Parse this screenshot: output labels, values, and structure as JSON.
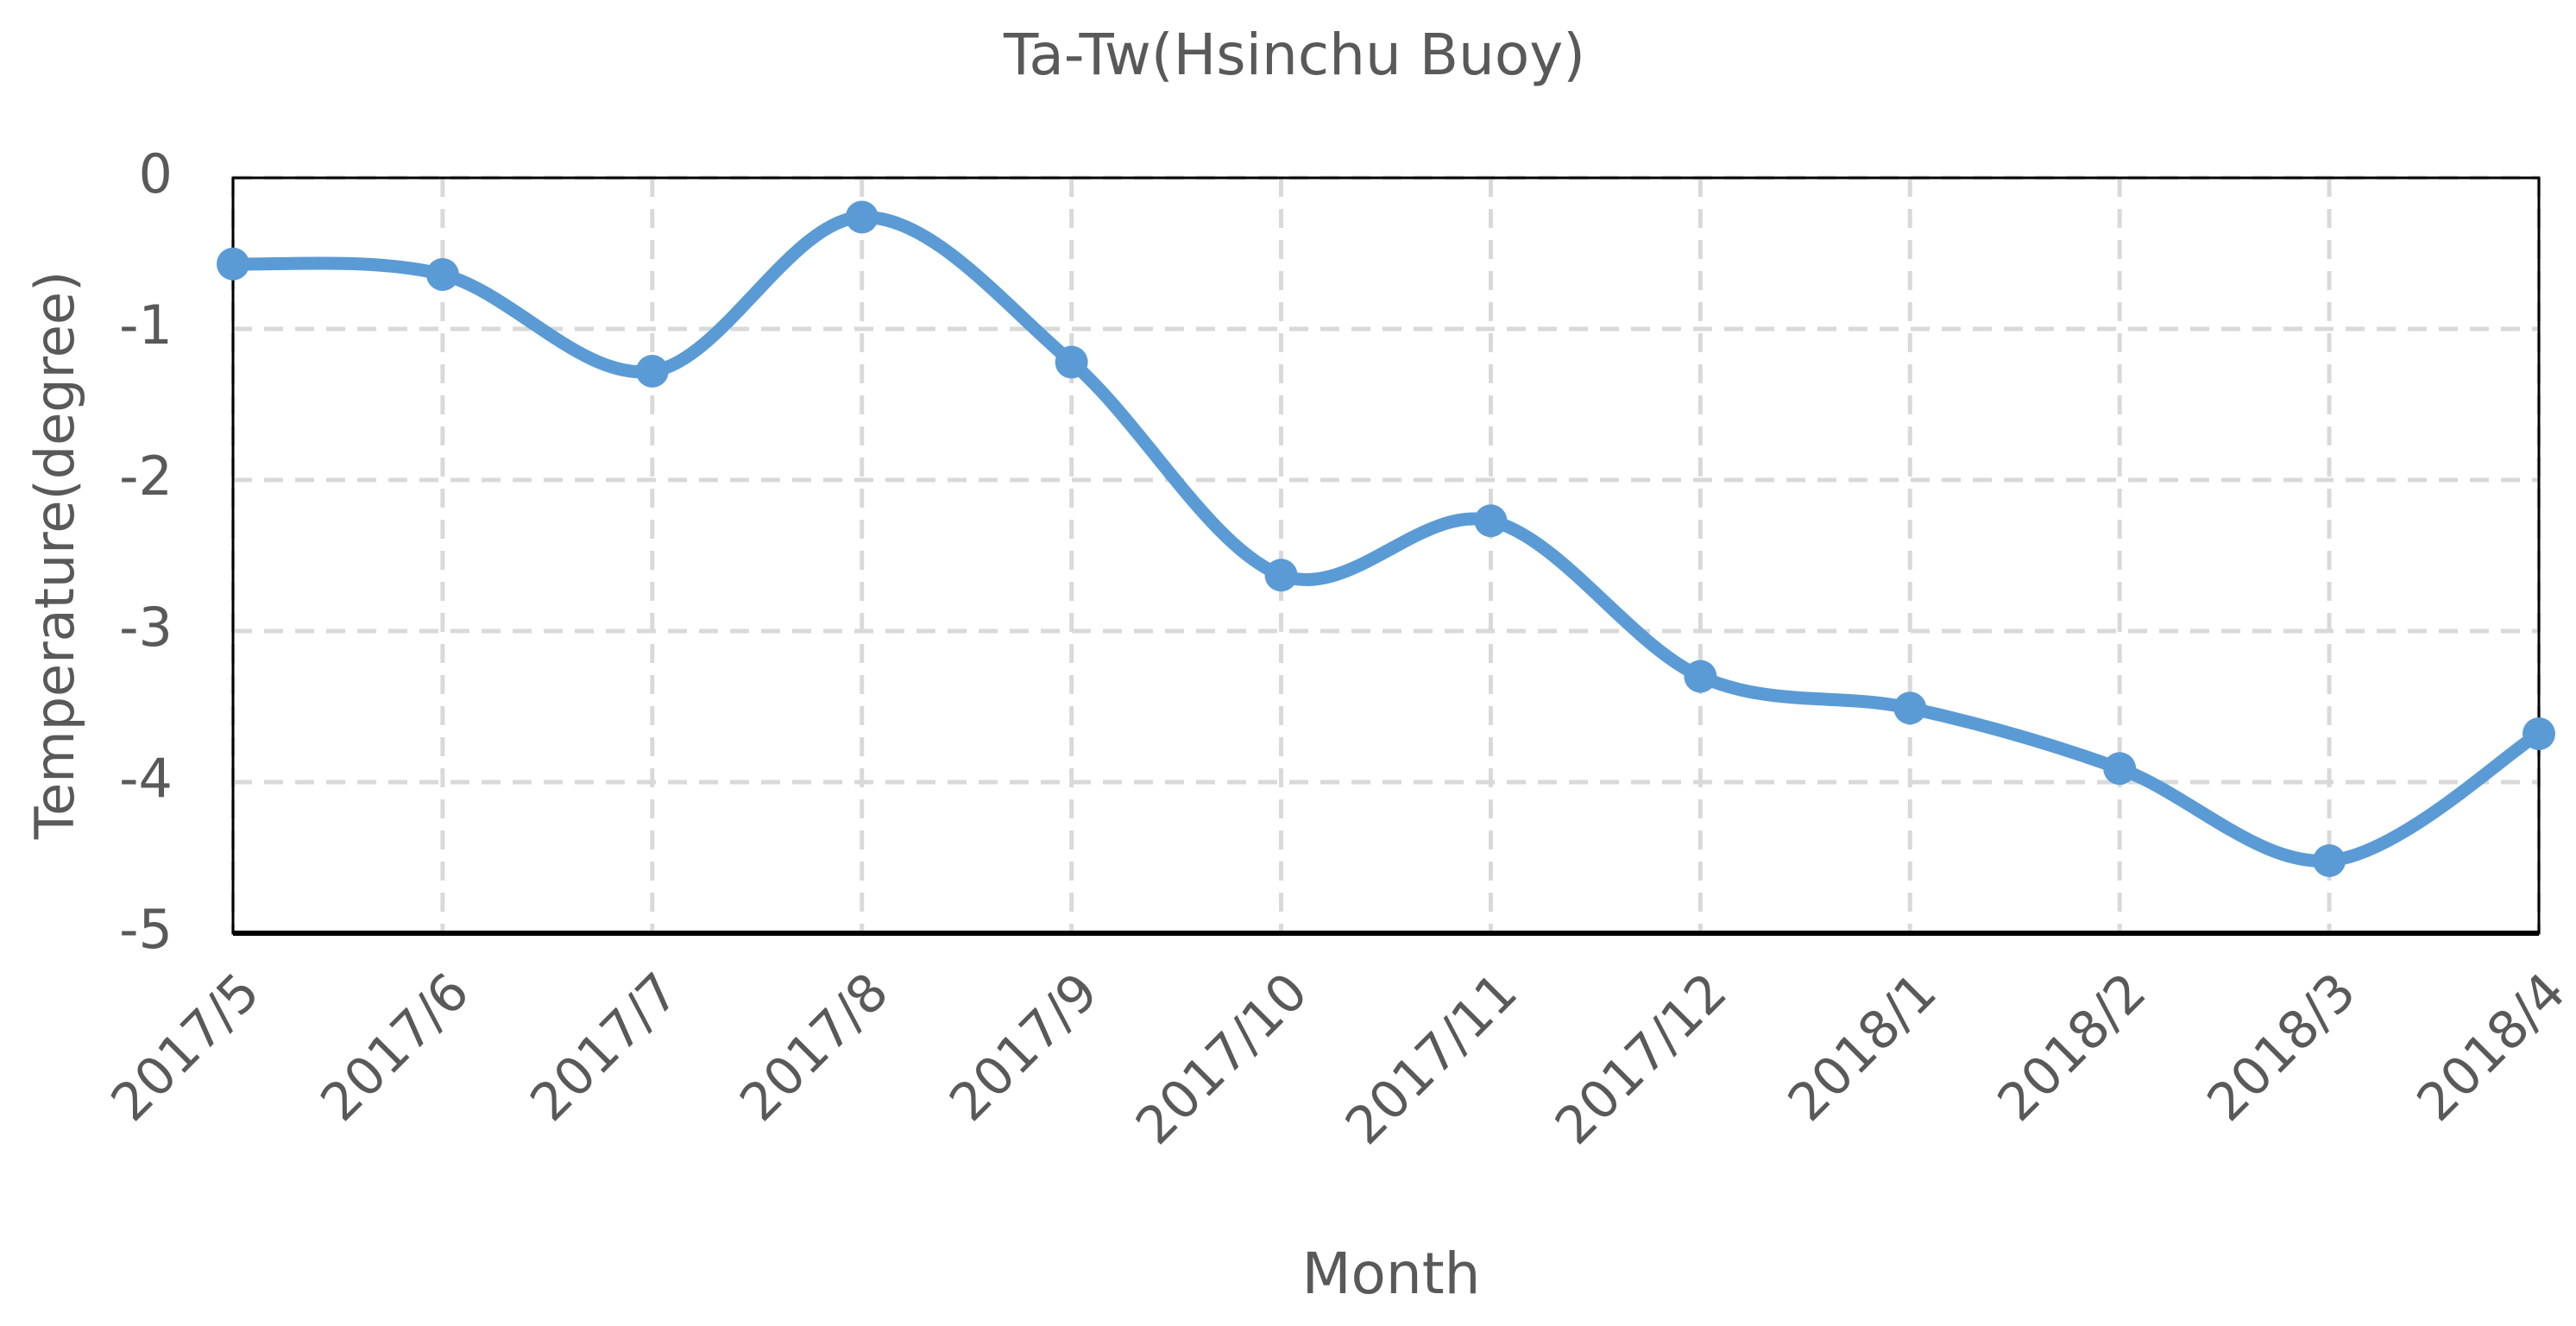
{
  "chart_data": {
    "type": "line",
    "title": "Ta-Tw(Hsinchu Buoy)",
    "x_label": "Month",
    "y_label": "Temperature(degree)",
    "categories": [
      "2017/5",
      "2017/6",
      "2017/7",
      "2017/8",
      "2017/9",
      "2017/10",
      "2017/11",
      "2017/12",
      "2018/1",
      "2018/2",
      "2018/3",
      "2018/4"
    ],
    "values": [
      -0.57,
      -0.64,
      -1.28,
      -0.26,
      -1.22,
      -2.63,
      -2.27,
      -3.3,
      -3.51,
      -3.91,
      -4.52,
      -3.68
    ],
    "color": "#5b9bd5",
    "smooth": true,
    "markers": true,
    "ylim": [
      -5,
      0
    ],
    "yticks": [
      0,
      -1,
      -2,
      -3,
      -4,
      -5
    ],
    "grid": true
  }
}
